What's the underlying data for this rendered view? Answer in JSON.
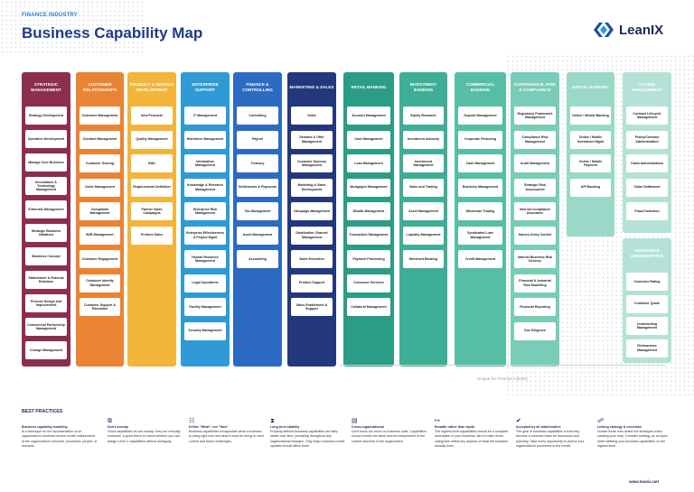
{
  "header": {
    "subtitle": "FINANCE INDUSTRY",
    "title": "Business Capability Map"
  },
  "logo": {
    "text": "LeanIX"
  },
  "columns": [
    {
      "title": "STRATEGIC MANAGEMENT",
      "color": "#8c2f4e",
      "items": [
        "Strategy Development",
        "Operation Development",
        "Manage Core Business",
        "Innovations & Technology Management",
        "Externals Management",
        "Strategic Business Initiatives",
        "Business Concept",
        "Stakeholder & External Relations",
        "Process Design and Improvement",
        "Commercial Partnership Management",
        "Change Management"
      ]
    },
    {
      "title": "CUSTOMER RELATIONSHIPS",
      "color": "#e98434",
      "items": [
        "Customer Management",
        "Contract Management",
        "Customer Scoring",
        "Order Management",
        "Complaints Management",
        "B2B Management",
        "Customer Engagement",
        "Customer Identity Management",
        "Customer Support & Education"
      ]
    },
    {
      "title": "PRODUCT & SERVICE DEVELOPMENT",
      "color": "#f2b53a",
      "items": [
        "New Products",
        "Quality Management",
        "R&D",
        "Requirements Definition",
        "Partner Sales Campaigns",
        "Preform Sales"
      ]
    },
    {
      "title": "ENTERPRISE SUPPORT",
      "color": "#2f9ad6",
      "items": [
        "IT Management",
        "Workforce Management",
        "Information Management",
        "Knowledge & Research Management",
        "Enterprise Risk Management",
        "Enterprise Effectiveness & Project Mgmt",
        "Human Resource Management",
        "Legal Operations",
        "Facility Management",
        "Security Management"
      ]
    },
    {
      "title": "FINANCE & CONTROLLING",
      "color": "#2c6bc1",
      "items": [
        "Controlling",
        "Payroll",
        "Treasury",
        "Settlements & Payments",
        "Tax Management",
        "Asset Management",
        "Accounting"
      ]
    },
    {
      "title": "MARKETING & SALES",
      "color": "#23387c",
      "items": [
        "Sales",
        "Demand & Offer Management",
        "Customer Success Management",
        "Marketing & Sales Development",
        "Campaign Management",
        "Distribution Channel Management",
        "Sales Execution",
        "Product Support",
        "Sales Enablement & Support"
      ]
    },
    {
      "title": "RETAIL BANKING",
      "color": "#2b9d87",
      "items": [
        "Account Management",
        "Card Management",
        "Loan Management",
        "Mortgages Management",
        "Wealth Management",
        "Transaction Management",
        "Payment Processing",
        "Consumer Services",
        "Collateral Management"
      ]
    },
    {
      "title": "INVESTMENT BANKING",
      "color": "#3fae96",
      "items": [
        "Equity Research",
        "Investment Advisory",
        "Investment Management",
        "Sales and Trading",
        "Asset Management",
        "Liquidity Management",
        "Merchant Banking"
      ]
    },
    {
      "title": "COMMERCIAL BANKING",
      "color": "#57bea6",
      "items": [
        "Deposit Management",
        "Corporate Financing",
        "Cash Management",
        "Business Management",
        "Wholesale Trading",
        "Syndicated Loan Management",
        "Credit Management"
      ]
    },
    {
      "title": "GOVERNANCE, RISK & COMPLIANCE",
      "color": "#79ccb8",
      "items": [
        "Regulatory Framework Management",
        "Compliance Risk Management",
        "Audit Management",
        "Strategic Risk Assessment",
        "Internal Compliance Assurance",
        "Sarnes-Oxley Control",
        "Internal Business Risk Delivery",
        "Financial & Actuarial Risk Modelling",
        "Financial Reporting",
        "Due Diligence"
      ]
    },
    {
      "title": "DIGITAL BANKING",
      "color": "#9ad8c8",
      "items": [
        "Online / Mobile Banking",
        "Online / Mobile Investment Mgmt",
        "Online / Mobile Payment",
        "API Banking"
      ]
    },
    {
      "title": "CLAIMS MANAGEMENT",
      "color": "#b5e2d6",
      "items": [
        "Contract Lifecycle Management",
        "Policy/Contract Administration",
        "Claim Administration",
        "Claim Settlement",
        "Fraud Detection"
      ]
    },
    {
      "title": "INSURANCE UNDERWRITING",
      "color": "#b5e2d6",
      "items": [
        "Customer Rating",
        "Customer Quote",
        "Underwriting Management",
        "Reinsurance Management"
      ]
    }
  ],
  "unique_label": "Unique for Finance Industry",
  "best_practices": {
    "title": "BEST PRACTICES",
    "items": [
      {
        "title": "Business capability modeling",
        "text": "is a technique for the representation of an organization's business anchor model independent of the organization's structure, processes, people, or domains."
      },
      {
        "title": "Don't overlap",
        "text": "Good capabilities do not overlap; they are mutually exclusive. A good test is to check whether you can assign Level 2 capabilities without ambiguity."
      },
      {
        "title": "Define \"What\", not \"How\"",
        "text": "Business capabilities encapsulate what a business is doing right now and what it must be doing to meet current and future challenges."
      },
      {
        "title": "Long-term stability",
        "text": "Properly defined business capabilities are fairly stable over time, prevailing throughout any organizational changes. Only major business model updates should affect them."
      },
      {
        "title": "Cross-organizational",
        "text": "Don't focus too much on business units. Capabilities should remain the same and be independent of the current structure of the organization."
      },
      {
        "title": "Breadth rather than depth",
        "text": "The highest-level capabilities should be a complete description of your business. Aim to make these categories reflect key aspects of what the business actually does."
      },
      {
        "title": "Accepted by all stakeholders",
        "text": "The goal of business capabilities is that they become a common basis for discussion and planning. Take every opportunity to anchor your organization's processes to the model."
      },
      {
        "title": "Linking strategy & execution",
        "text": "Involve those who define the strategies when creating your map. Consider strategy as an input when defining your business capabilities on the highest level."
      }
    ]
  },
  "footer": {
    "url": "www.leanix.net"
  }
}
